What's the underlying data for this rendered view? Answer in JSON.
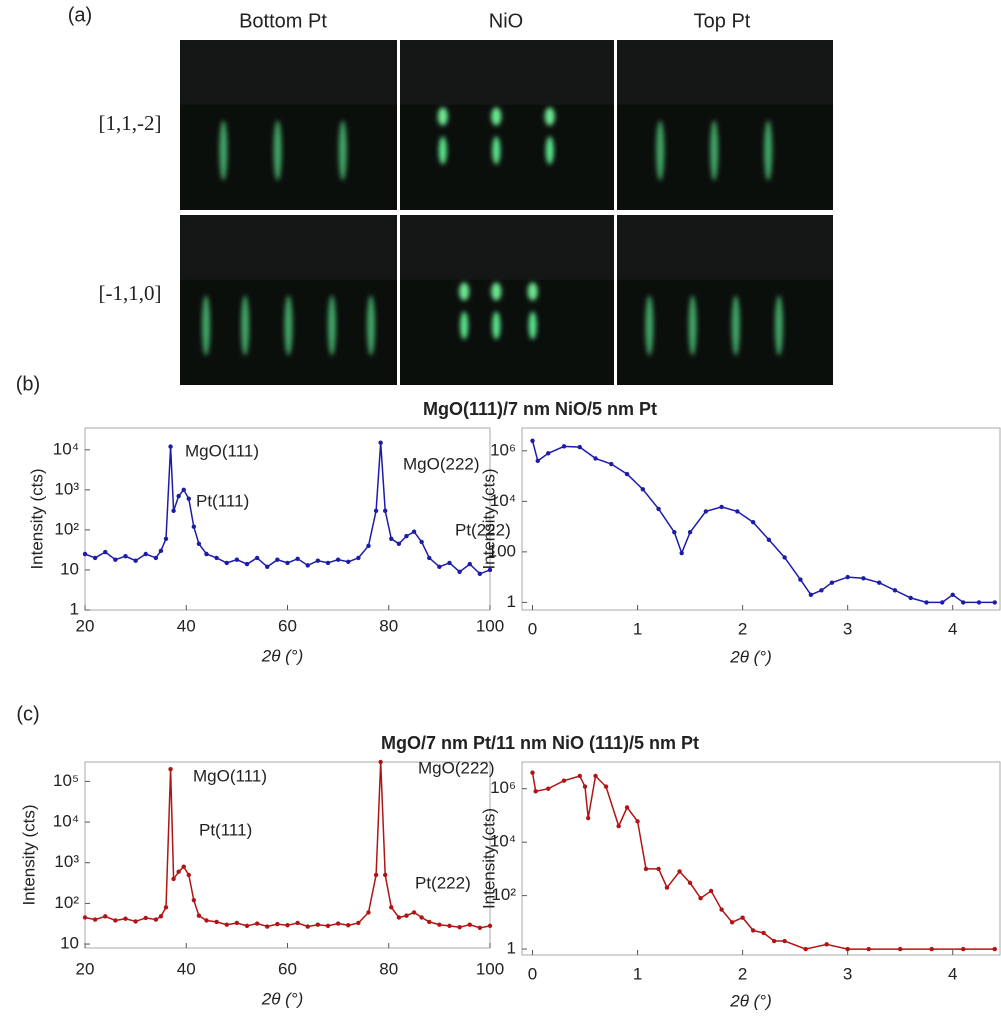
{
  "panel_labels": [
    "(a)",
    "(b)",
    "(c)"
  ],
  "rheed": {
    "columns": [
      "Bottom Pt",
      "NiO",
      "Top Pt"
    ],
    "rows": [
      "[1,1,-2]",
      "[-1,1,0]"
    ]
  },
  "section_titles": [
    "MgO(111)/7 nm NiO/5 nm Pt",
    "MgO/7 nm Pt/11 nm NiO (111)/5 nm Pt"
  ],
  "chart_data": [
    {
      "type": "line",
      "xlabel": "2θ (°)",
      "ylabel": "Intensity (cts)",
      "color": "#1c1ca8",
      "log_y": true,
      "annotations": [
        "MgO(111)",
        "Pt(111)",
        "MgO(222)",
        "Pt(222)"
      ],
      "xlim": [
        20,
        100
      ],
      "xticks": [
        20,
        40,
        60,
        80,
        100
      ],
      "ylim": [
        1,
        35000
      ],
      "yticks": [
        1,
        10,
        {
          "value": 100,
          "label": "10²"
        },
        {
          "value": 1000,
          "label": "10³"
        },
        {
          "value": 10000,
          "label": "10⁴"
        }
      ],
      "x": [
        20,
        22,
        24,
        26,
        28,
        30,
        32,
        34,
        35,
        36,
        36.9,
        37.5,
        38.5,
        39.5,
        40.5,
        41.5,
        42.5,
        44,
        46,
        48,
        50,
        52,
        54,
        56,
        58,
        60,
        62,
        64,
        66,
        68,
        70,
        72,
        74,
        76,
        77.5,
        78.4,
        79.3,
        80.5,
        82,
        83.5,
        85,
        86.5,
        88,
        90,
        92,
        94,
        96,
        98,
        100
      ],
      "values": [
        25,
        20,
        28,
        18,
        22,
        17,
        25,
        20,
        30,
        60,
        12000,
        300,
        700,
        1000,
        600,
        120,
        45,
        25,
        20,
        15,
        18,
        14,
        20,
        12,
        18,
        15,
        19,
        13,
        17,
        15,
        18,
        16,
        20,
        40,
        300,
        15000,
        300,
        60,
        45,
        70,
        90,
        50,
        20,
        12,
        15,
        9,
        14,
        8,
        10
      ]
    },
    {
      "type": "line",
      "xlabel": "2θ (°)",
      "ylabel": "Intensity (cts)",
      "color": "#1c1ca8",
      "log_y": true,
      "xlim": [
        -0.1,
        4.45
      ],
      "xticks": [
        0,
        1,
        2,
        3,
        4
      ],
      "ylim": [
        0.5,
        8000000
      ],
      "yticks": [
        1,
        100,
        {
          "value": 10000,
          "label": "10⁴"
        },
        {
          "value": 1000000,
          "label": "10⁶"
        }
      ],
      "x": [
        0,
        0.05,
        0.15,
        0.3,
        0.45,
        0.6,
        0.75,
        0.9,
        1.05,
        1.2,
        1.35,
        1.42,
        1.5,
        1.65,
        1.8,
        1.95,
        2.1,
        2.25,
        2.4,
        2.55,
        2.65,
        2.75,
        2.85,
        3.0,
        3.15,
        3.3,
        3.45,
        3.6,
        3.75,
        3.9,
        4.0,
        4.1,
        4.25,
        4.4
      ],
      "values": [
        2500000,
        400000,
        800000,
        1500000,
        1400000,
        500000,
        300000,
        120000,
        30000,
        5000,
        600,
        90,
        600,
        4000,
        6000,
        4000,
        1500,
        300,
        60,
        8,
        2,
        3,
        6,
        10,
        9,
        6,
        3,
        1.5,
        1,
        1,
        2,
        1,
        1,
        1
      ]
    },
    {
      "type": "line",
      "xlabel": "2θ (°)",
      "ylabel": "Intensity (cts)",
      "color": "#b01515",
      "log_y": true,
      "annotations": [
        "MgO(111)",
        "Pt(111)",
        "MgO(222)",
        "Pt(222)"
      ],
      "xlim": [
        20,
        100
      ],
      "xticks": [
        20,
        40,
        60,
        80,
        100
      ],
      "ylim": [
        8,
        300000
      ],
      "yticks": [
        10,
        {
          "value": 100,
          "label": "10²"
        },
        {
          "value": 1000,
          "label": "10³"
        },
        {
          "value": 10000,
          "label": "10⁴"
        },
        {
          "value": 100000,
          "label": "10⁵"
        }
      ],
      "x": [
        20,
        22,
        24,
        26,
        28,
        30,
        32,
        34,
        35,
        36,
        36.9,
        37.5,
        38.5,
        39.5,
        40.5,
        41.5,
        42.5,
        44,
        46,
        48,
        50,
        52,
        54,
        56,
        58,
        60,
        62,
        64,
        66,
        68,
        70,
        72,
        74,
        76,
        77.5,
        78.4,
        79.3,
        80.5,
        82,
        83.5,
        85,
        86.5,
        88,
        90,
        92,
        94,
        96,
        98,
        100
      ],
      "values": [
        45,
        40,
        48,
        38,
        42,
        36,
        44,
        40,
        48,
        80,
        200000,
        400,
        600,
        800,
        500,
        120,
        50,
        38,
        35,
        30,
        33,
        28,
        32,
        27,
        31,
        29,
        33,
        27,
        30,
        28,
        32,
        29,
        33,
        60,
        500,
        300000,
        500,
        80,
        45,
        50,
        60,
        45,
        35,
        30,
        28,
        26,
        30,
        25,
        28
      ]
    },
    {
      "type": "line",
      "xlabel": "2θ (°)",
      "ylabel": "Intensity (cts)",
      "color": "#b01515",
      "log_y": true,
      "xlim": [
        -0.1,
        4.45
      ],
      "xticks": [
        0,
        1,
        2,
        3,
        4
      ],
      "ylim": [
        0.6,
        10000000
      ],
      "yticks": [
        1,
        {
          "value": 100,
          "label": "10²"
        },
        {
          "value": 10000,
          "label": "10⁴"
        },
        {
          "value": 1000000,
          "label": "10⁶"
        }
      ],
      "x": [
        0,
        0.03,
        0.15,
        0.3,
        0.45,
        0.5,
        0.53,
        0.6,
        0.7,
        0.82,
        0.9,
        1.0,
        1.08,
        1.2,
        1.28,
        1.4,
        1.5,
        1.6,
        1.7,
        1.8,
        1.9,
        2.0,
        2.1,
        2.2,
        2.3,
        2.4,
        2.6,
        2.8,
        3.0,
        3.2,
        3.5,
        3.8,
        4.1,
        4.4
      ],
      "values": [
        4000000,
        800000,
        1000000,
        2000000,
        3000000,
        1200000,
        80000,
        3000000,
        1200000,
        40000,
        200000,
        60000,
        1000,
        1000,
        200,
        800,
        300,
        80,
        150,
        30,
        10,
        15,
        5,
        4,
        2,
        2,
        1,
        1.5,
        1,
        1,
        1,
        1,
        1,
        1
      ]
    }
  ]
}
